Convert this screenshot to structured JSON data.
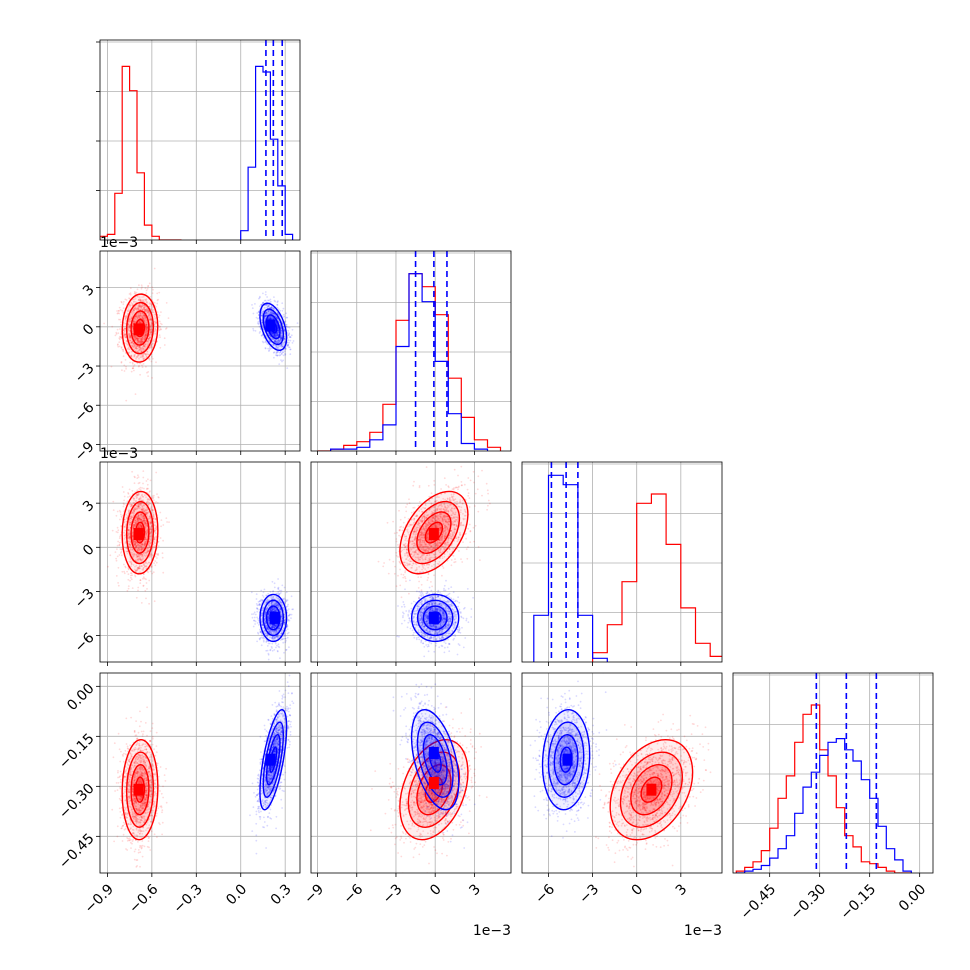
{
  "chart_data": {
    "type": "corner",
    "grid": true,
    "dimensions": [
      {
        "range": [
          -0.95,
          0.4
        ],
        "ticks": [
          -0.9,
          -0.6,
          -0.3,
          0.0,
          0.3
        ],
        "tick_labels": [
          "−0.9",
          "−0.6",
          "−0.3",
          "0.0",
          "0.3"
        ],
        "offset": ""
      },
      {
        "range": [
          -0.0095,
          0.0058
        ],
        "ticks": [
          -0.009,
          -0.006,
          -0.003,
          0.0,
          0.003
        ],
        "tick_labels": [
          "−9",
          "−6",
          "−3",
          "0",
          "3"
        ],
        "offset": "1e−3"
      },
      {
        "range": [
          -0.0078,
          0.0058
        ],
        "ticks": [
          -0.006,
          -0.003,
          0.0,
          0.003
        ],
        "tick_labels": [
          "−6",
          "−3",
          "0",
          "3"
        ],
        "offset": "1e−3"
      },
      {
        "range": [
          -0.56,
          0.04
        ],
        "ticks": [
          -0.45,
          -0.3,
          -0.15,
          0.0
        ],
        "tick_labels": [
          "−0.45",
          "−0.30",
          "−0.15",
          "0.00"
        ],
        "offset": ""
      }
    ],
    "series": [
      {
        "color": "#ff0000",
        "means": [
          -0.68,
          -0.0001,
          0.001,
          -0.31
        ],
        "sds": [
          0.06,
          0.0013,
          0.0014,
          0.075
        ],
        "correlations": {
          "1-0": 0.05,
          "2-0": 0.05,
          "2-1": 0.45,
          "3-0": 0.05,
          "3-1": 0.35,
          "3-2": 0.35
        },
        "histograms": [
          {
            "edges": [
              -0.95,
              -0.9,
              -0.85,
              -0.8,
              -0.75,
              -0.7,
              -0.65,
              -0.6,
              -0.55,
              -0.5,
              -0.45,
              -0.4
            ],
            "counts": [
              0.02,
              0.03,
              0.25,
              0.93,
              0.8,
              0.36,
              0.08,
              0.02,
              0,
              0,
              0
            ]
          },
          {
            "edges": [
              -0.009,
              -0.008,
              -0.007,
              -0.006,
              -0.005,
              -0.004,
              -0.003,
              -0.002,
              -0.001,
              0.0,
              0.001,
              0.002,
              0.003,
              0.004,
              0.005
            ],
            "counts": [
              0.0,
              0.01,
              0.03,
              0.05,
              0.1,
              0.25,
              0.7,
              0.95,
              0.88,
              0.73,
              0.39,
              0.18,
              0.06,
              0.02
            ]
          },
          {
            "edges": [
              -0.003,
              -0.002,
              -0.001,
              0.0,
              0.001,
              0.002,
              0.003,
              0.004,
              0.005,
              0.006
            ],
            "counts": [
              0.05,
              0.2,
              0.43,
              0.85,
              0.9,
              0.63,
              0.29,
              0.1,
              0.03
            ]
          },
          {
            "edges": [
              -0.55,
              -0.525,
              -0.5,
              -0.475,
              -0.45,
              -0.425,
              -0.4,
              -0.375,
              -0.35,
              -0.325,
              -0.3,
              -0.275,
              -0.25,
              -0.225,
              -0.2,
              -0.175,
              -0.15,
              -0.125,
              -0.1,
              -0.075,
              -0.05,
              -0.025
            ],
            "counts": [
              0.01,
              0.03,
              0.06,
              0.12,
              0.24,
              0.4,
              0.52,
              0.7,
              0.85,
              0.9,
              0.66,
              0.52,
              0.35,
              0.2,
              0.14,
              0.06,
              0.05,
              0.03,
              0.01,
              0,
              0
            ]
          }
        ]
      },
      {
        "color": "#0000ff",
        "means": [
          0.22,
          0.0,
          -0.0048,
          -0.22
        ],
        "sds": [
          0.045,
          0.0009,
          0.0008,
          0.075
        ],
        "correlations": {
          "1-0": -0.45,
          "2-0": 0.0,
          "2-1": 0.0,
          "3-0": 0.65,
          "3-1": -0.45,
          "3-2": 0.1
        },
        "histograms": [
          {
            "edges": [
              0.0,
              0.05,
              0.1,
              0.15,
              0.2,
              0.25,
              0.3,
              0.35
            ],
            "counts": [
              0.05,
              0.39,
              0.93,
              0.9,
              0.54,
              0.29,
              0.03
            ]
          },
          {
            "edges": [
              -0.008,
              -0.007,
              -0.006,
              -0.005,
              -0.004,
              -0.003,
              -0.002,
              -0.001,
              0.0,
              0.001,
              0.002,
              0.003,
              0.004
            ],
            "counts": [
              0.01,
              0.01,
              0.02,
              0.06,
              0.14,
              0.56,
              0.95,
              0.8,
              0.48,
              0.2,
              0.04,
              0.01
            ]
          },
          {
            "edges": [
              -0.007,
              -0.006,
              -0.005,
              -0.004,
              -0.003,
              -0.002
            ],
            "counts": [
              0.25,
              1.0,
              0.95,
              0.25,
              0.02
            ]
          },
          {
            "edges": [
              -0.55,
              -0.525,
              -0.5,
              -0.475,
              -0.45,
              -0.425,
              -0.4,
              -0.375,
              -0.35,
              -0.325,
              -0.3,
              -0.275,
              -0.25,
              -0.225,
              -0.2,
              -0.175,
              -0.15,
              -0.125,
              -0.1,
              -0.075,
              -0.05,
              -0.025
            ],
            "counts": [
              0,
              0.01,
              0.02,
              0.04,
              0.08,
              0.13,
              0.2,
              0.32,
              0.46,
              0.54,
              0.63,
              0.7,
              0.72,
              0.66,
              0.6,
              0.5,
              0.4,
              0.25,
              0.13,
              0.07,
              0.01
            ]
          }
        ]
      }
    ],
    "quantiles": [
      {
        "color": "#0000ff",
        "values": [
          0.17,
          0.22,
          0.28
        ]
      },
      {
        "color": "#0000ff",
        "values": [
          -0.0015,
          -0.0001,
          0.0009
        ]
      },
      {
        "color": "#0000ff",
        "values": [
          -0.0058,
          -0.0048,
          -0.004
        ]
      },
      {
        "color": "#0000ff",
        "values": [
          -0.31,
          -0.22,
          -0.13
        ]
      }
    ],
    "peak_markers": {
      "0-1": [
        {
          "color": "#ff0000",
          "x": -0.69,
          "y": -0.0002
        },
        {
          "color": "#0000ff",
          "x": 0.2,
          "y": 0.0001
        }
      ],
      "0-2": [
        {
          "color": "#ff0000",
          "x": -0.69,
          "y": 0.0009
        },
        {
          "color": "#0000ff",
          "x": 0.23,
          "y": -0.0048
        }
      ],
      "0-3": [
        {
          "color": "#ff0000",
          "x": -0.69,
          "y": -0.31
        },
        {
          "color": "#0000ff",
          "x": 0.2,
          "y": -0.22
        }
      ],
      "1-2": [
        {
          "color": "#ff0000",
          "x": -0.0001,
          "y": 0.0009
        },
        {
          "color": "#0000ff",
          "x": -0.0001,
          "y": -0.0048
        }
      ],
      "1-3": [
        {
          "color": "#ff0000",
          "x": -0.0001,
          "y": -0.29
        },
        {
          "color": "#0000ff",
          "x": -0.0001,
          "y": -0.2
        }
      ],
      "2-3": [
        {
          "color": "#ff0000",
          "x": 0.001,
          "y": -0.31
        },
        {
          "color": "#0000ff",
          "x": -0.0047,
          "y": -0.22
        }
      ]
    }
  }
}
